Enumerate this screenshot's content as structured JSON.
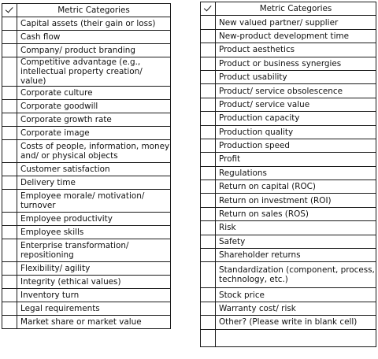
{
  "check_symbol": "✓",
  "header": "Metric Categories",
  "left_items": [
    "Capital assets (their gain or loss)",
    "Cash flow",
    "Company/ product branding",
    "Competitive advantage (e.g., intellectual property creation/ value)",
    "Corporate culture",
    "Corporate goodwill",
    "Corporate growth rate",
    "Corporate image",
    "Costs of people, information, money and/ or physical objects",
    "Customer satisfaction",
    "Delivery time",
    "Employee morale/ motivation/ turnover",
    "Employee productivity",
    "Employee skills",
    "Enterprise transformation/ repositioning",
    "Flexibility/ agility",
    "Integrity (ethical values)",
    "Inventory turn",
    "Legal requirements",
    "Market share or market value"
  ],
  "right_items": [
    "New valued partner/ supplier",
    "New-product development time",
    "Product aesthetics",
    "Product or business synergies",
    "Product usability",
    "Product/ service obsolescence",
    "Product/ service value",
    "Production capacity",
    "Production quality",
    "Production speed",
    "Profit",
    "Regulations",
    "Return on capital (ROC)",
    "Return on investment (ROI)",
    "Return on sales (ROS)",
    "Risk",
    "Safety",
    "Shareholder returns",
    "Standardization (component, process, technology, etc.)",
    "Stock price",
    "Warranty cost/ risk",
    "Other? (Please write in blank cell)",
    ""
  ]
}
